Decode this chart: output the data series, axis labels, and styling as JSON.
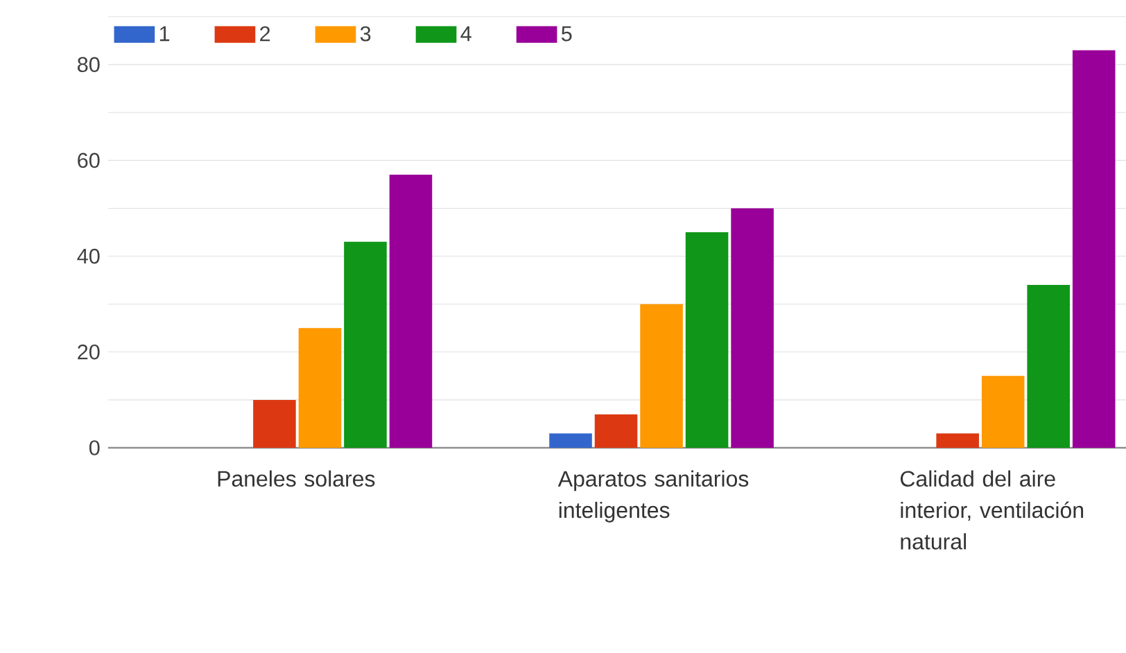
{
  "chart_data": {
    "type": "bar",
    "categories": [
      "Paneles solares",
      "Aparatos sanitarios inteligentes",
      "Calidad del aire interior, ventilación natural"
    ],
    "series": [
      {
        "name": "1",
        "color": "#3366cc",
        "values": [
          0,
          3,
          0
        ]
      },
      {
        "name": "2",
        "color": "#dc3912",
        "values": [
          10,
          7,
          3
        ]
      },
      {
        "name": "3",
        "color": "#ff9900",
        "values": [
          25,
          30,
          15
        ]
      },
      {
        "name": "4",
        "color": "#109618",
        "values": [
          43,
          45,
          34
        ]
      },
      {
        "name": "5",
        "color": "#990099",
        "values": [
          57,
          50,
          83
        ]
      }
    ],
    "ylim": [
      0,
      90
    ],
    "yticks": [
      0,
      {
        "value": 10,
        "label": null
      },
      20,
      {
        "value": 30,
        "label": null
      },
      40,
      {
        "value": 50,
        "label": null
      },
      60,
      {
        "value": 70,
        "label": null
      },
      80,
      {
        "value": 90,
        "label": null
      }
    ],
    "grid": "y",
    "legend": "top left"
  }
}
